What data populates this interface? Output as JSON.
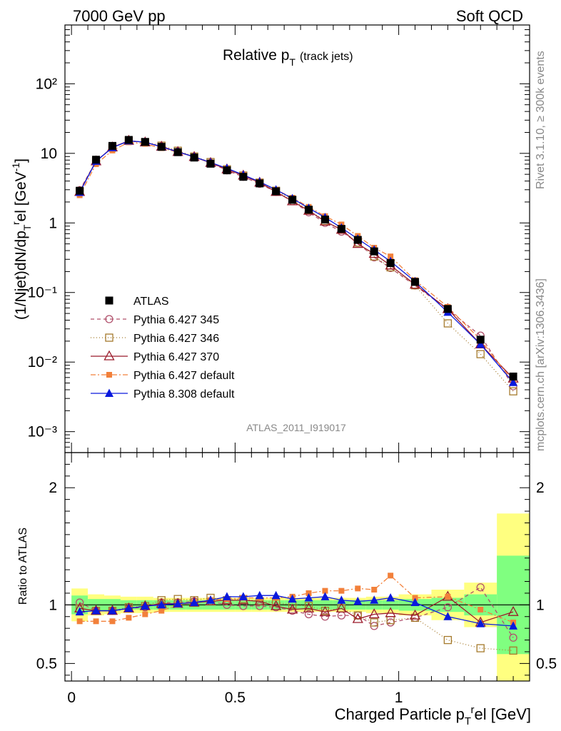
{
  "header": {
    "left": "7000 GeV pp",
    "right": "Soft QCD"
  },
  "side": {
    "rivet": "Rivet 3.1.10, ≥ 300k events",
    "mcplots": "mcplots.cern.ch [arXiv:1306.3436]"
  },
  "chart_data": [
    {
      "type": "scatter",
      "title": "Relative p_T (track jets)",
      "title_main": "Relative p",
      "title_sub": "T",
      "title_note": "(track jets)",
      "ylabel": "(1/Njet)dN/dp_T^rel [GeV^-1]",
      "ylabel_parts": [
        "(1/Njet)dN/dp",
        "T",
        "r",
        "el [GeV",
        "-1",
        "]"
      ],
      "watermark": "ATLAS_2011_I919017",
      "yscale": "log",
      "ylim": [
        0.0005,
        700
      ],
      "xlim": [
        -0.02,
        1.4
      ],
      "ytick_labels": [
        "10⁻³",
        "10⁻²",
        "10⁻¹",
        "1",
        "10",
        "10²"
      ],
      "ytick_values": [
        0.001,
        0.01,
        0.1,
        1,
        10,
        100
      ],
      "legend_position": "center-left",
      "x": [
        0.025,
        0.075,
        0.125,
        0.175,
        0.225,
        0.275,
        0.325,
        0.375,
        0.425,
        0.475,
        0.525,
        0.575,
        0.625,
        0.675,
        0.725,
        0.775,
        0.825,
        0.875,
        0.925,
        0.975,
        1.05,
        1.15,
        1.25,
        1.35
      ],
      "series": [
        {
          "name": "ATLAS",
          "color": "#000000",
          "marker": "square",
          "values": [
            2.9,
            8.1,
            12.8,
            15.6,
            14.6,
            12.4,
            10.4,
            8.7,
            7.1,
            5.7,
            4.6,
            3.7,
            2.85,
            2.15,
            1.55,
            1.12,
            0.82,
            0.57,
            0.39,
            0.265,
            0.142,
            0.058,
            0.021,
            0.0062
          ]
        },
        {
          "name": "Pythia 6.427 345",
          "color": "#b0506b",
          "marker": "open-circle",
          "dash": "5,4",
          "values": [
            2.95,
            7.7,
            12.2,
            15.1,
            14.3,
            12.6,
            10.6,
            8.9,
            7.3,
            5.7,
            4.6,
            3.65,
            2.8,
            2.05,
            1.42,
            1.0,
            0.75,
            0.52,
            0.32,
            0.225,
            0.126,
            0.057,
            0.024,
            0.0045
          ]
        },
        {
          "name": "Pythia 6.427 346",
          "color": "#a57a2c",
          "marker": "open-square",
          "dash": "1,3",
          "values": [
            2.8,
            7.7,
            12.1,
            15.2,
            14.5,
            12.9,
            10.9,
            9.0,
            7.5,
            5.9,
            4.8,
            3.8,
            2.9,
            2.15,
            1.53,
            1.07,
            0.8,
            0.52,
            0.33,
            0.23,
            0.127,
            0.036,
            0.013,
            0.0038
          ]
        },
        {
          "name": "Pythia 6.427 370",
          "color": "#9b1b2b",
          "marker": "open-triangle",
          "dash": "",
          "values": [
            2.8,
            7.7,
            12.2,
            15.2,
            14.4,
            12.5,
            10.5,
            8.9,
            7.3,
            5.9,
            4.8,
            3.8,
            2.8,
            2.05,
            1.5,
            1.05,
            0.8,
            0.5,
            0.36,
            0.245,
            0.13,
            0.058,
            0.018,
            0.0058
          ]
        },
        {
          "name": "Pythia 6.427 default",
          "color": "#f2803a",
          "marker": "square-small",
          "dash": "7,3,2,3",
          "values": [
            2.5,
            7.0,
            11.0,
            14.4,
            13.7,
            11.9,
            10.4,
            8.9,
            7.4,
            6.0,
            4.9,
            3.9,
            3.0,
            2.3,
            1.7,
            1.25,
            0.95,
            0.65,
            0.44,
            0.33,
            0.15,
            0.062,
            0.021,
            0.0052
          ]
        },
        {
          "name": "Pythia 8.308 default",
          "color": "#0a19dd",
          "marker": "triangle",
          "dash": "",
          "values": [
            2.75,
            7.7,
            12.1,
            15.1,
            14.5,
            12.4,
            10.5,
            8.9,
            7.4,
            6.1,
            4.9,
            3.9,
            3.0,
            2.25,
            1.63,
            1.2,
            0.85,
            0.59,
            0.41,
            0.28,
            0.144,
            0.052,
            0.018,
            0.0051
          ]
        }
      ]
    },
    {
      "type": "scatter",
      "ylabel": "Ratio to ATLAS",
      "xlabel": "Charged Particle p_T^rel [GeV]",
      "xlabel_parts": [
        "Charged Particle p",
        "T",
        "r",
        "el [GeV]"
      ],
      "ylim": [
        0.35,
        2.3
      ],
      "xlim": [
        -0.02,
        1.4
      ],
      "xtick_labels": [
        "0",
        "0.5",
        "1"
      ],
      "xtick_values": [
        0,
        0.5,
        1
      ],
      "ytick_labels": [
        "0.5",
        "1",
        "2"
      ],
      "ytick_values": [
        0.5,
        1,
        2
      ],
      "x": [
        0.025,
        0.075,
        0.125,
        0.175,
        0.225,
        0.275,
        0.325,
        0.375,
        0.425,
        0.475,
        0.525,
        0.575,
        0.625,
        0.675,
        0.725,
        0.775,
        0.825,
        0.875,
        0.925,
        0.975,
        1.05,
        1.15,
        1.25,
        1.35
      ],
      "band_edges": [
        0,
        0.05,
        0.1,
        0.15,
        0.2,
        0.25,
        0.3,
        0.35,
        0.4,
        0.45,
        0.5,
        0.55,
        0.6,
        0.65,
        0.7,
        0.75,
        0.8,
        0.85,
        0.9,
        0.95,
        1.0,
        1.1,
        1.2,
        1.3,
        1.4
      ],
      "band_inner": [
        0.08,
        0.05,
        0.05,
        0.04,
        0.04,
        0.04,
        0.04,
        0.04,
        0.04,
        0.04,
        0.04,
        0.04,
        0.04,
        0.04,
        0.04,
        0.04,
        0.04,
        0.04,
        0.04,
        0.04,
        0.05,
        0.06,
        0.09,
        0.42
      ],
      "band_outer": [
        0.14,
        0.09,
        0.08,
        0.07,
        0.07,
        0.06,
        0.06,
        0.06,
        0.06,
        0.06,
        0.06,
        0.06,
        0.06,
        0.06,
        0.06,
        0.06,
        0.06,
        0.06,
        0.07,
        0.07,
        0.09,
        0.13,
        0.19,
        0.78
      ],
      "series": [
        {
          "name": "Pythia 6.427 345",
          "color": "#b0506b",
          "marker": "open-circle",
          "dash": "5,4",
          "values": [
            1.02,
            0.95,
            0.95,
            0.97,
            0.98,
            1.02,
            1.02,
            1.03,
            1.03,
            1.0,
            0.99,
            0.99,
            0.98,
            0.95,
            0.92,
            0.9,
            0.91,
            0.91,
            0.82,
            0.85,
            0.89,
            0.98,
            1.15,
            0.72
          ]
        },
        {
          "name": "Pythia 6.427 346",
          "color": "#a57a2c",
          "marker": "open-square",
          "dash": "1,3",
          "values": [
            0.97,
            0.95,
            0.95,
            0.98,
            0.99,
            1.04,
            1.05,
            1.04,
            1.06,
            1.04,
            1.05,
            1.03,
            1.02,
            1.0,
            0.99,
            0.95,
            0.97,
            0.91,
            0.85,
            0.87,
            0.89,
            0.7,
            0.63,
            0.61
          ]
        },
        {
          "name": "Pythia 6.427 370",
          "color": "#9b1b2b",
          "marker": "open-triangle",
          "dash": "",
          "values": [
            0.97,
            0.95,
            0.95,
            0.97,
            0.99,
            1.01,
            1.01,
            1.02,
            1.03,
            1.04,
            1.04,
            1.03,
            0.99,
            0.96,
            0.97,
            0.94,
            0.97,
            0.88,
            0.92,
            0.93,
            0.91,
            1.07,
            0.85,
            0.94
          ]
        },
        {
          "name": "Pythia 6.427 default",
          "color": "#f2803a",
          "marker": "square-small",
          "dash": "7,3,2,3",
          "values": [
            0.86,
            0.86,
            0.86,
            0.89,
            0.92,
            0.95,
            1.0,
            1.02,
            1.04,
            1.05,
            1.06,
            1.06,
            1.06,
            1.07,
            1.1,
            1.12,
            1.12,
            1.14,
            1.13,
            1.25,
            1.06,
            1.07,
            0.96,
            0.85
          ]
        },
        {
          "name": "Pythia 8.308 default",
          "color": "#0a19dd",
          "marker": "triangle",
          "dash": "",
          "values": [
            0.94,
            0.95,
            0.95,
            0.97,
            0.99,
            1.0,
            1.01,
            1.02,
            1.04,
            1.07,
            1.07,
            1.08,
            1.08,
            1.05,
            1.06,
            1.07,
            1.04,
            1.03,
            1.04,
            1.06,
            1.02,
            0.9,
            0.84,
            0.82
          ]
        }
      ]
    }
  ]
}
